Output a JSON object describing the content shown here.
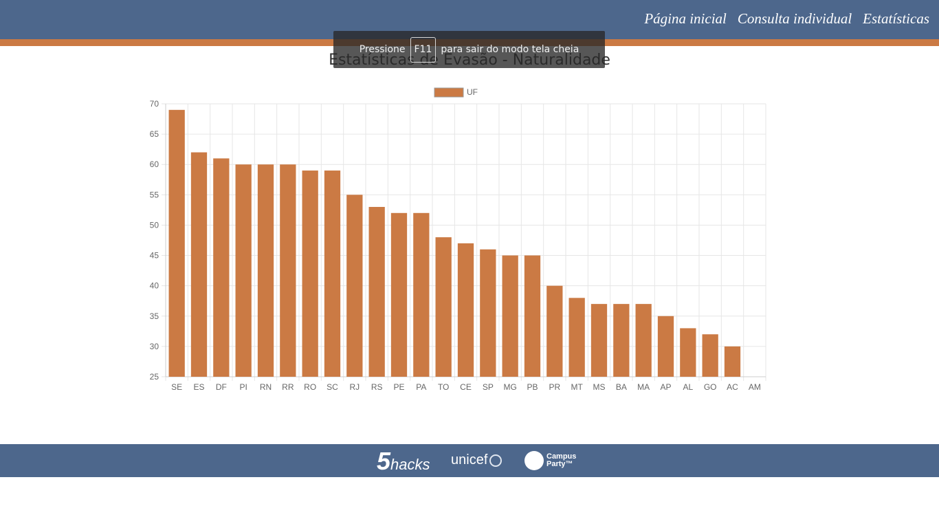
{
  "nav": {
    "links": [
      "Página inicial",
      "Consulta individual",
      "Estatísticas"
    ]
  },
  "page": {
    "title": "Estatísticas de Evasão - Naturalidade"
  },
  "toast": {
    "before": "Pressione",
    "key": "F11",
    "after": "para sair do modo tela cheia"
  },
  "chart_data": {
    "type": "bar",
    "title": "",
    "legend": {
      "label": "UF",
      "position": "top"
    },
    "categories": [
      "SE",
      "ES",
      "DF",
      "PI",
      "RN",
      "RR",
      "RO",
      "SC",
      "RJ",
      "RS",
      "PE",
      "PA",
      "TO",
      "CE",
      "SP",
      "MG",
      "PB",
      "PR",
      "MT",
      "MS",
      "BA",
      "MA",
      "AP",
      "AL",
      "GO",
      "AC",
      "AM"
    ],
    "series": [
      {
        "name": "UF",
        "color": "#cb7a44",
        "values": [
          69,
          62,
          61,
          60,
          60,
          60,
          59,
          59,
          55,
          53,
          52,
          52,
          48,
          47,
          46,
          45,
          45,
          40,
          38,
          37,
          37,
          37,
          35,
          33,
          32,
          30,
          25
        ]
      }
    ],
    "ylim": [
      25,
      70
    ],
    "yticks": [
      25,
      30,
      35,
      40,
      45,
      50,
      55,
      60,
      65,
      70
    ],
    "grid": true
  },
  "footer": {
    "logos": {
      "five": "5",
      "hacks": "hacks",
      "unicef": "unicef",
      "cp_line1": "Campus",
      "cp_line2": "Party™"
    }
  },
  "colors": {
    "navbar": "#4d678c",
    "accent": "#cb7a44",
    "bar": "#cb7a44"
  }
}
